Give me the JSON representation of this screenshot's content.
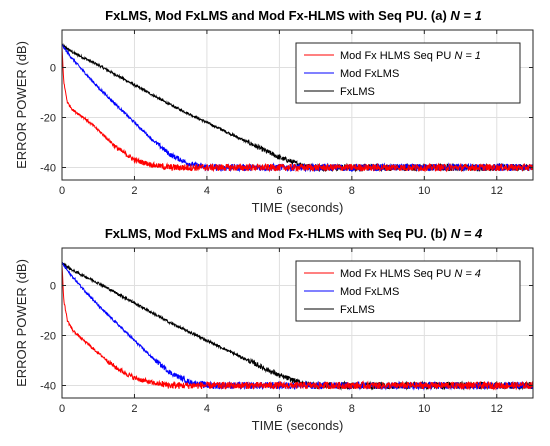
{
  "chart_data": [
    {
      "type": "line",
      "title": "FxLMS, Mod FxLMS and Mod Fx-HLMS with Seq PU. (a)",
      "title_n": "N = 1",
      "xlabel": "TIME (seconds)",
      "ylabel": "ERROR POWER (dB)",
      "xlim": [
        0,
        13
      ],
      "ylim": [
        -45,
        15
      ],
      "xticks": [
        0,
        2,
        4,
        6,
        8,
        10,
        12
      ],
      "yticks": [
        0,
        -20,
        -40
      ],
      "grid": true,
      "legend_position": "top-right",
      "series": [
        {
          "name": "Mod Fx HLMS Seq PU",
          "name_n": "N = 1",
          "color": "#ff0000",
          "x": [
            0,
            0.05,
            0.15,
            0.3,
            0.6,
            1.0,
            1.5,
            2.0,
            2.5,
            3.0,
            3.5,
            4.0,
            5.0,
            13.0
          ],
          "y": [
            8,
            -6,
            -14,
            -17,
            -20,
            -25,
            -32,
            -37,
            -39,
            -40,
            -40,
            -40,
            -40,
            -40
          ]
        },
        {
          "name": "Mod FxLMS",
          "color": "#0000ff",
          "x": [
            0,
            0.2,
            0.5,
            1.0,
            1.5,
            2.0,
            2.5,
            3.0,
            3.5,
            4.0,
            4.5,
            5.0,
            13.0
          ],
          "y": [
            9,
            5,
            0,
            -8,
            -15,
            -22,
            -29,
            -35,
            -38.5,
            -40,
            -40,
            -40,
            -40
          ]
        },
        {
          "name": "FxLMS",
          "color": "#000000",
          "x": [
            0,
            0.3,
            1.0,
            2.0,
            3.0,
            4.0,
            5.0,
            6.0,
            6.5,
            7.0,
            13.0
          ],
          "y": [
            9,
            6,
            1,
            -7,
            -15,
            -22,
            -29,
            -36,
            -38.5,
            -40,
            -40
          ]
        }
      ]
    },
    {
      "type": "line",
      "title": "FxLMS, Mod FxLMS and Mod Fx-HLMS with Seq PU. (b)",
      "title_n": "N = 4",
      "xlabel": "TIME (seconds)",
      "ylabel": "ERROR POWER (dB)",
      "xlim": [
        0,
        13
      ],
      "ylim": [
        -45,
        15
      ],
      "xticks": [
        0,
        2,
        4,
        6,
        8,
        10,
        12
      ],
      "yticks": [
        0,
        -20,
        -40
      ],
      "grid": true,
      "legend_position": "top-right",
      "series": [
        {
          "name": "Mod Fx HLMS Seq PU",
          "name_n": "N = 4",
          "color": "#ff0000",
          "x": [
            0,
            0.05,
            0.15,
            0.3,
            0.6,
            1.0,
            1.5,
            2.0,
            2.5,
            3.0,
            3.5,
            13.0
          ],
          "y": [
            8,
            -6,
            -14,
            -18,
            -22,
            -27,
            -33,
            -37,
            -39,
            -40,
            -40,
            -40
          ]
        },
        {
          "name": "Mod FxLMS",
          "color": "#0000ff",
          "x": [
            0,
            0.2,
            0.5,
            1.0,
            1.5,
            2.0,
            2.5,
            3.0,
            3.5,
            4.0,
            4.5,
            5.0,
            13.0
          ],
          "y": [
            9,
            5,
            0,
            -8,
            -15,
            -22,
            -29,
            -35,
            -38.5,
            -40,
            -40,
            -40,
            -40
          ]
        },
        {
          "name": "FxLMS",
          "color": "#000000",
          "x": [
            0,
            0.3,
            1.0,
            2.0,
            3.0,
            4.0,
            5.0,
            6.0,
            6.5,
            7.0,
            13.0
          ],
          "y": [
            9,
            6,
            1,
            -7,
            -15,
            -22,
            -29,
            -36,
            -38.5,
            -40,
            -40
          ]
        }
      ]
    }
  ]
}
